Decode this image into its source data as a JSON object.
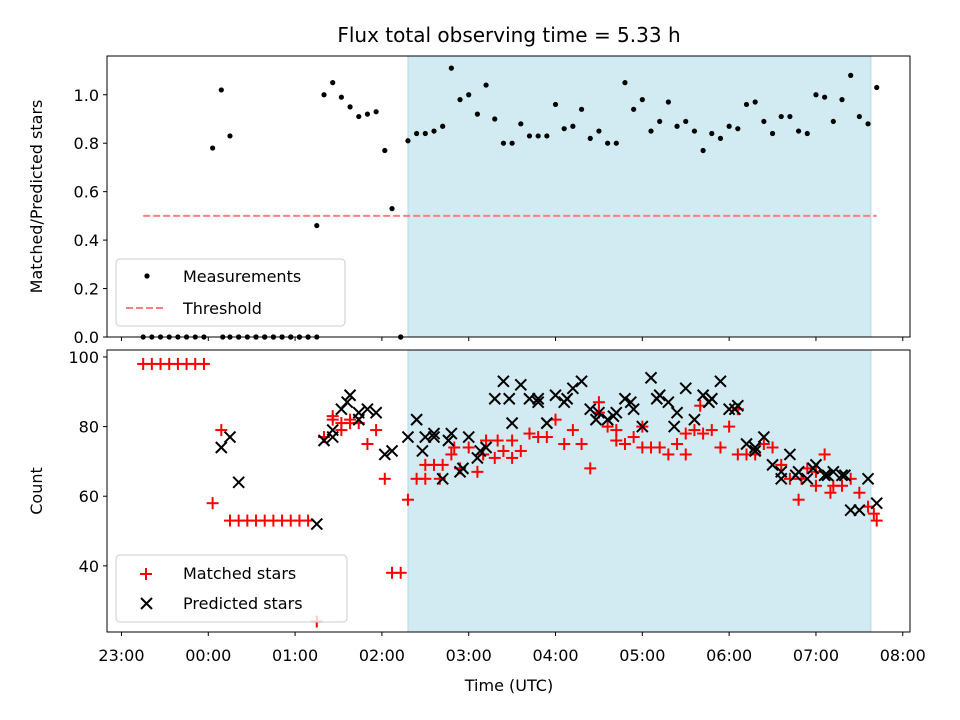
{
  "chart_data": {
    "title": "Flux total observing time = 5.33 h",
    "xlabel": "Time (UTC)",
    "x_ticks": [
      "23:00",
      "00:00",
      "01:00",
      "02:00",
      "03:00",
      "04:00",
      "05:00",
      "06:00",
      "07:00",
      "08:00"
    ],
    "x_tick_hours": [
      23,
      24,
      25,
      26,
      27,
      28,
      29,
      30,
      31,
      32
    ],
    "xlim": [
      "22:50",
      "08:05"
    ],
    "observing_window": {
      "start": "02:18",
      "end": "07:38",
      "color": "#add8e6"
    },
    "panels": [
      {
        "type": "scatter",
        "ylabel": "Matched/Predicted stars",
        "ylim": [
          0,
          1.16
        ],
        "y_ticks": [
          "0.0",
          "0.2",
          "0.4",
          "0.6",
          "0.8",
          "1.0"
        ],
        "y_tick_values": [
          0,
          0.2,
          0.4,
          0.6,
          0.8,
          1.0
        ],
        "legend_position": "lower-left",
        "series": [
          {
            "name": "Measurements",
            "marker": "dot",
            "color": "#000000",
            "x": [
              "23:15",
              "23:21",
              "23:27",
              "23:33",
              "23:39",
              "23:45",
              "23:51",
              "23:57",
              "00:03",
              "00:09",
              "00:15",
              "00:21",
              "00:27",
              "00:33",
              "00:39",
              "00:45",
              "00:51",
              "00:57",
              "01:03",
              "01:09",
              "01:15",
              "01:20",
              "01:26",
              "01:32",
              "01:38",
              "01:44",
              "01:50",
              "01:56",
              "02:02",
              "02:07",
              "02:13",
              "02:18",
              "02:24",
              "02:30",
              "02:36",
              "02:42",
              "02:48",
              "02:54",
              "03:00",
              "03:06",
              "03:12",
              "03:18",
              "03:24",
              "03:30",
              "03:36",
              "03:42",
              "03:48",
              "03:54",
              "04:00",
              "04:06",
              "04:12",
              "04:18",
              "04:24",
              "04:30",
              "04:36",
              "04:42",
              "04:48",
              "04:54",
              "05:00",
              "05:06",
              "05:12",
              "05:18",
              "05:24",
              "05:30",
              "05:36",
              "05:42",
              "05:48",
              "05:54",
              "06:00",
              "06:06",
              "06:12",
              "06:18",
              "06:24",
              "06:30",
              "06:36",
              "06:42",
              "06:48",
              "06:54",
              "07:00",
              "07:06",
              "07:12",
              "07:18",
              "07:24",
              "07:30",
              "07:36",
              "07:42",
              "00:10",
              "00:15",
              "00:21",
              "00:33",
              "00:39",
              "00:45",
              "00:51",
              "00:57",
              "01:03",
              "01:09",
              "01:15",
              "02:13"
            ],
            "y": [
              0,
              0,
              0,
              0,
              0,
              0,
              0,
              0,
              0.78,
              1.02,
              0.83,
              0,
              0,
              0,
              0,
              0,
              0,
              0,
              0,
              0,
              0.46,
              1.0,
              1.05,
              0.99,
              0.95,
              0.91,
              0.92,
              0.93,
              0.77,
              0.53,
              0,
              0.81,
              0.84,
              0.84,
              0.85,
              0.87,
              1.11,
              0.98,
              1.0,
              0.92,
              1.04,
              0.9,
              0.8,
              0.8,
              0.88,
              0.83,
              0.83,
              0.83,
              0.96,
              0.86,
              0.87,
              0.94,
              0.82,
              0.85,
              0.8,
              0.8,
              1.05,
              0.94,
              0.98,
              0.85,
              0.89,
              0.97,
              0.87,
              0.89,
              0.85,
              0.77,
              0.84,
              0.82,
              0.87,
              0.86,
              0.96,
              0.97,
              0.89,
              0.84,
              0.91,
              0.91,
              0.85,
              0.84,
              1.0,
              0.99,
              0.89,
              0.98,
              1.08,
              0.91,
              0.88,
              1.03,
              0,
              0,
              0,
              0,
              0,
              0,
              0,
              0,
              0,
              0,
              0,
              0
            ]
          },
          {
            "name": "Threshold",
            "type": "line",
            "style": "dashed",
            "color": "#ff7f7f",
            "x": [
              "23:15",
              "07:42"
            ],
            "y": [
              0.5,
              0.5
            ]
          }
        ]
      },
      {
        "type": "scatter",
        "ylabel": "Count",
        "ylim": [
          21,
          102
        ],
        "y_ticks": [
          "40",
          "60",
          "80",
          "100"
        ],
        "y_tick_values": [
          40,
          60,
          80,
          100
        ],
        "legend_position": "lower-left",
        "series": [
          {
            "name": "Matched stars",
            "marker": "plus",
            "color": "#ff0000",
            "x": [
              "23:15",
              "23:21",
              "23:27",
              "23:33",
              "23:39",
              "23:45",
              "23:51",
              "23:57",
              "00:03",
              "00:09",
              "00:15",
              "00:21",
              "00:27",
              "00:33",
              "00:39",
              "00:45",
              "00:51",
              "00:57",
              "01:03",
              "01:09",
              "01:15",
              "01:20",
              "01:26",
              "01:32",
              "01:38",
              "01:44",
              "01:50",
              "01:56",
              "02:02",
              "02:07",
              "02:13",
              "02:18",
              "02:24",
              "02:30",
              "02:36",
              "02:42",
              "02:48",
              "02:54",
              "03:00",
              "03:06",
              "03:12",
              "03:18",
              "03:24",
              "03:30",
              "03:36",
              "03:42",
              "03:48",
              "03:54",
              "04:00",
              "04:06",
              "04:12",
              "04:18",
              "04:24",
              "04:30",
              "04:36",
              "04:42",
              "04:48",
              "04:54",
              "05:00",
              "05:06",
              "05:12",
              "05:18",
              "05:24",
              "05:30",
              "05:36",
              "05:42",
              "05:48",
              "05:54",
              "06:00",
              "06:06",
              "06:12",
              "06:18",
              "06:24",
              "06:30",
              "06:36",
              "06:42",
              "06:48",
              "06:54",
              "07:00",
              "07:06",
              "07:12",
              "07:18",
              "07:24",
              "07:30",
              "07:36",
              "07:42"
            ],
            "y": [
              98,
              98,
              98,
              98,
              98,
              98,
              98,
              98,
              58,
              79,
              53,
              53,
              53,
              53,
              53,
              53,
              53,
              53,
              53,
              53,
              24,
              77,
              83,
              79,
              82,
              81,
              75,
              79,
              65,
              38,
              38,
              59,
              65,
              69,
              69,
              69,
              72,
              68,
              74,
              67,
              76,
              71,
              73,
              76,
              73,
              78,
              77,
              77,
              82,
              75,
              79,
              75,
              68,
              87,
              80,
              79,
              75,
              77,
              80,
              74,
              74,
              72,
              75,
              72,
              79,
              78,
              79,
              74,
              80,
              85,
              72,
              72,
              75,
              74,
              69,
              65,
              59,
              68,
              67,
              72,
              63,
              63,
              65,
              61,
              57,
              53
            ],
            "extra_x": [
              "01:26",
              "01:32",
              "01:38",
              "02:30",
              "02:40",
              "02:50",
              "03:10",
              "03:20",
              "03:30",
              "04:30",
              "04:42",
              "05:00",
              "05:30",
              "05:40",
              "06:06",
              "06:50",
              "07:00",
              "07:10",
              "07:40"
            ],
            "extra_y": [
              82,
              81,
              81,
              65,
              65,
              74,
              72,
              76,
              71,
              84,
              76,
              74,
              78,
              86,
              72,
              65,
              63,
              61,
              55
            ]
          },
          {
            "name": "Predicted stars",
            "marker": "x",
            "color": "#000000",
            "x": [
              "00:09",
              "00:15",
              "00:21",
              "01:15",
              "01:20",
              "01:26",
              "01:32",
              "01:38",
              "01:44",
              "01:50",
              "01:56",
              "02:02",
              "02:07",
              "02:18",
              "02:24",
              "02:30",
              "02:36",
              "02:42",
              "02:48",
              "02:54",
              "03:00",
              "03:06",
              "03:12",
              "03:18",
              "03:24",
              "03:30",
              "03:36",
              "03:42",
              "03:48",
              "03:54",
              "04:00",
              "04:06",
              "04:12",
              "04:18",
              "04:24",
              "04:30",
              "04:36",
              "04:42",
              "04:48",
              "04:54",
              "05:00",
              "05:06",
              "05:12",
              "05:18",
              "05:24",
              "05:30",
              "05:36",
              "05:42",
              "05:48",
              "05:54",
              "06:00",
              "06:06",
              "06:12",
              "06:18",
              "06:24",
              "06:30",
              "06:36",
              "06:42",
              "06:48",
              "06:54",
              "07:00",
              "07:06",
              "07:12",
              "07:18",
              "07:24",
              "07:30",
              "07:36",
              "07:42",
              "01:26",
              "01:36",
              "01:44",
              "02:28",
              "02:36",
              "02:46",
              "02:56",
              "03:08",
              "03:28",
              "03:48",
              "04:08",
              "04:28",
              "04:40",
              "04:52",
              "05:10",
              "05:22",
              "05:46",
              "06:04",
              "06:18",
              "06:36",
              "06:46",
              "06:58",
              "07:08",
              "07:20"
            ],
            "y": [
              74,
              77,
              64,
              52,
              76,
              79,
              85,
              89,
              84,
              85,
              84,
              72,
              73,
              77,
              82,
              77,
              78,
              65,
              78,
              67,
              77,
              71,
              74,
              88,
              93,
              81,
              92,
              88,
              88,
              81,
              89,
              87,
              91,
              93,
              85,
              84,
              82,
              84,
              88,
              85,
              80,
              94,
              89,
              87,
              84,
              91,
              82,
              89,
              88,
              93,
              85,
              86,
              75,
              73,
              77,
              69,
              67,
              72,
              67,
              65,
              69,
              66,
              67,
              66,
              56,
              56,
              65,
              58,
              77,
              87,
              82,
              73,
              77,
              76,
              68,
              73,
              88,
              87,
              88,
              82,
              83,
              87,
              88,
              80,
              87,
              85,
              74,
              65,
              66,
              68,
              66,
              66
            ]
          }
        ]
      }
    ]
  }
}
